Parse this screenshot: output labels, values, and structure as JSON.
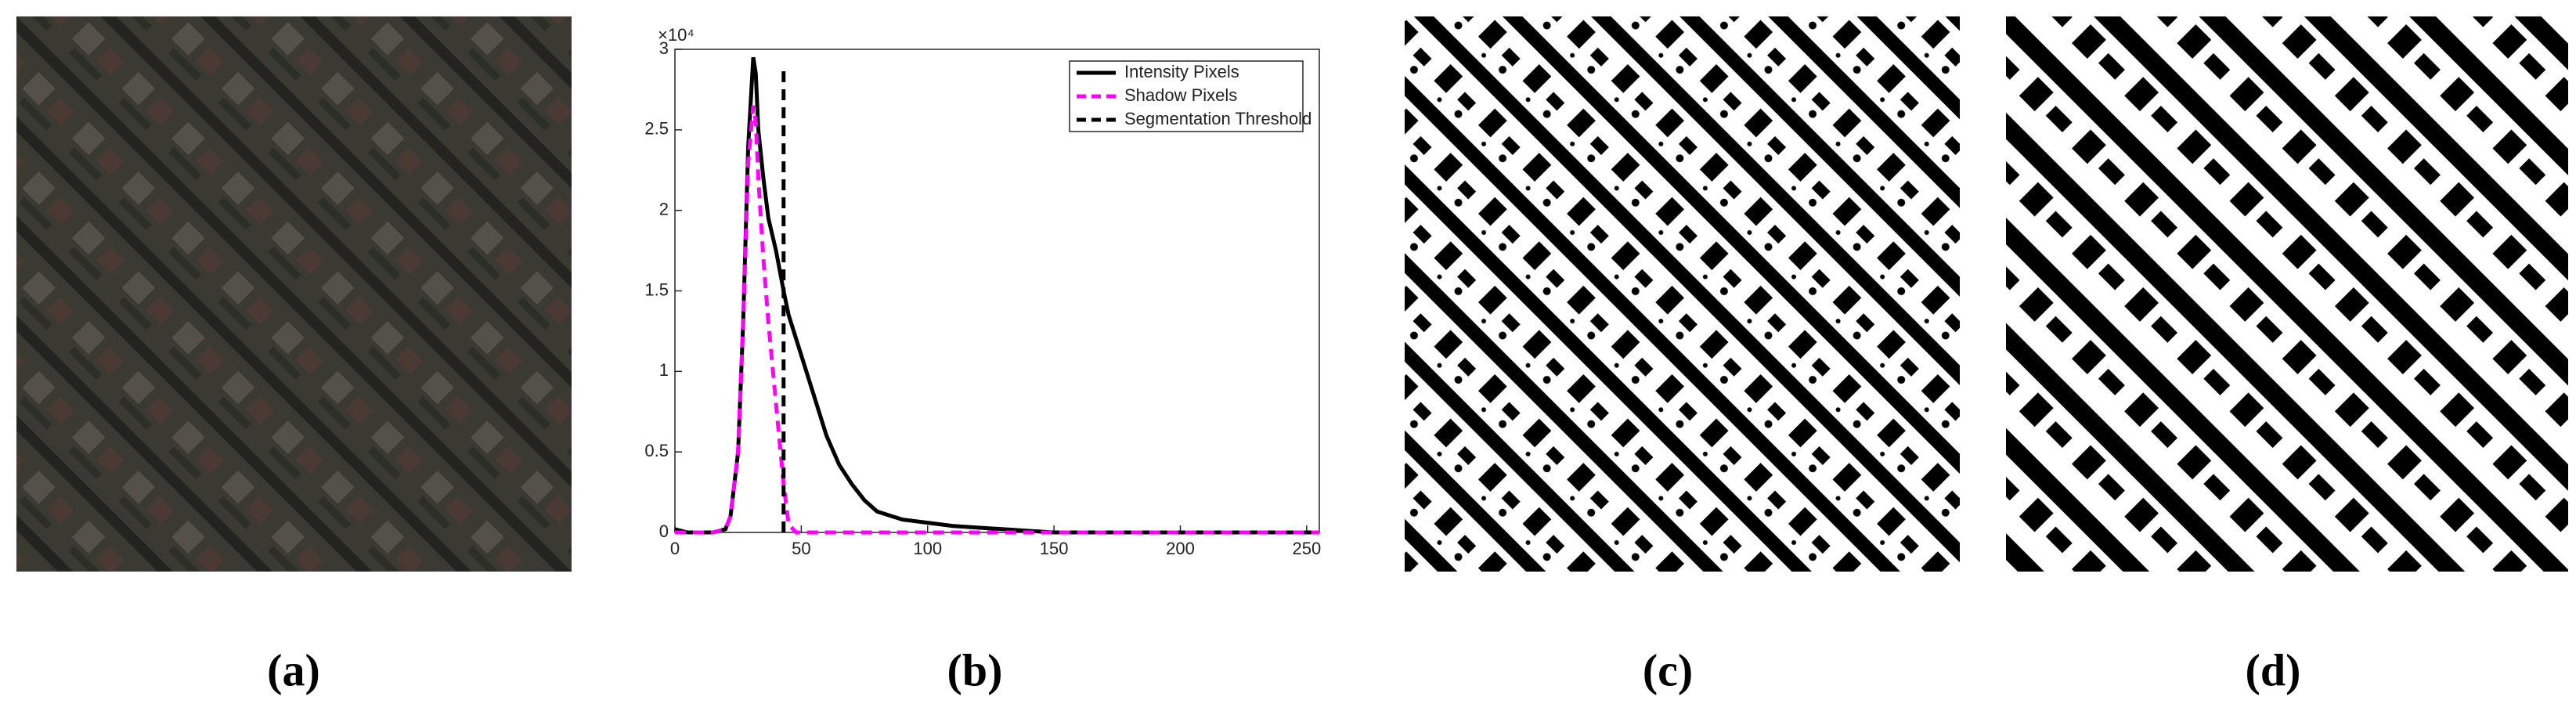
{
  "chart_data": {
    "type": "line",
    "y_exponent_label": "×10⁴",
    "xlim": [
      0,
      255
    ],
    "xticks": [
      0,
      50,
      100,
      150,
      200,
      250
    ],
    "ylim": [
      0,
      3
    ],
    "yticks": [
      0,
      0.5,
      1,
      1.5,
      2,
      2.5,
      3
    ],
    "grid": false,
    "legend": "upper right",
    "x": [
      0,
      5,
      10,
      15,
      20,
      22,
      25,
      27,
      29,
      31,
      32,
      33,
      35,
      37,
      40,
      43,
      45,
      48,
      50,
      55,
      60,
      65,
      70,
      75,
      80,
      90,
      100,
      110,
      120,
      130,
      140,
      150,
      175,
      200,
      225,
      255
    ],
    "series": [
      {
        "name": "Intensity Pixels",
        "color": "#000000",
        "line_style": "solid",
        "values": [
          0.02,
          0,
          0,
          0,
          0.02,
          0.1,
          0.5,
          1.3,
          2.4,
          2.95,
          2.85,
          2.5,
          2.2,
          1.95,
          1.75,
          1.5,
          1.35,
          1.2,
          1.1,
          0.85,
          0.6,
          0.42,
          0.3,
          0.2,
          0.13,
          0.08,
          0.06,
          0.04,
          0.03,
          0.02,
          0.01,
          0,
          0,
          0,
          0,
          0
        ]
      },
      {
        "name": "Shadow Pixels",
        "color": "#ff00ff",
        "line_style": "dashed",
        "values": [
          0,
          0,
          0,
          0,
          0.02,
          0.1,
          0.5,
          1.3,
          2.3,
          2.65,
          2.55,
          2.2,
          1.7,
          1.3,
          0.8,
          0.3,
          0.05,
          0,
          0,
          0,
          0,
          0,
          0,
          0,
          0,
          0,
          0,
          0,
          0,
          0,
          0,
          0,
          0,
          0,
          0,
          0
        ]
      },
      {
        "name": "Segmentation Threshold",
        "color": "#000000",
        "line_style": "dashed",
        "x": [
          43,
          43
        ],
        "values": [
          0,
          2.9
        ]
      }
    ]
  },
  "panel_labels": [
    "(a)",
    "(b)",
    "(c)",
    "(d)"
  ]
}
